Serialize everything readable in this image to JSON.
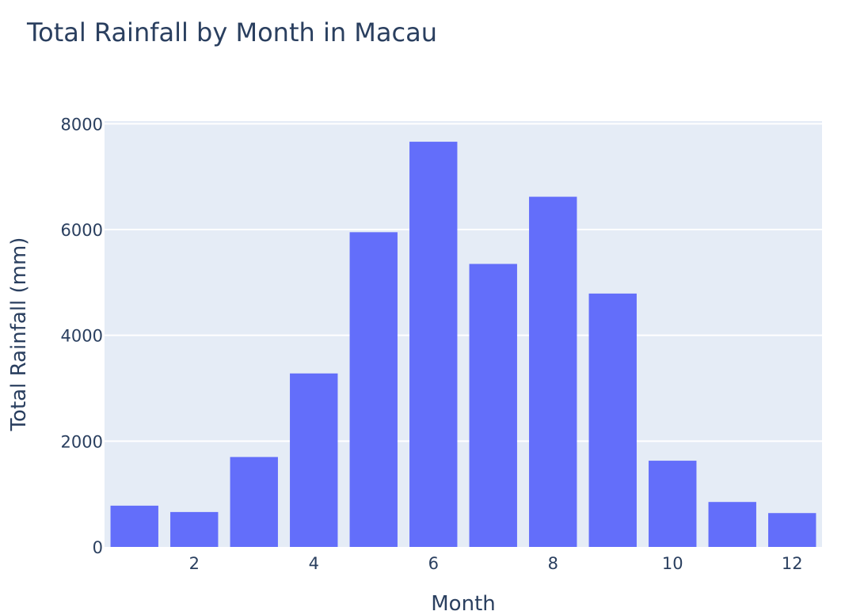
{
  "chart_data": {
    "type": "bar",
    "title": "Total Rainfall by Month in Macau",
    "xlabel": "Month",
    "ylabel": "Total Rainfall (mm)",
    "x": [
      1,
      2,
      3,
      4,
      5,
      6,
      7,
      8,
      9,
      10,
      11,
      12
    ],
    "values": [
      780,
      660,
      1700,
      3280,
      5950,
      7660,
      5350,
      6620,
      4790,
      1630,
      850,
      640
    ],
    "xlim": [
      0.5,
      12.5
    ],
    "ylim": [
      0,
      8050
    ],
    "xticks": [
      2,
      4,
      6,
      8,
      10,
      12
    ],
    "yticks": [
      0,
      2000,
      4000,
      6000,
      8000
    ],
    "grid": true,
    "colors": {
      "bar": "#636efa",
      "plot_background": "#e5ecf6",
      "grid": "#ffffff",
      "text": "#2a3f5f"
    }
  }
}
